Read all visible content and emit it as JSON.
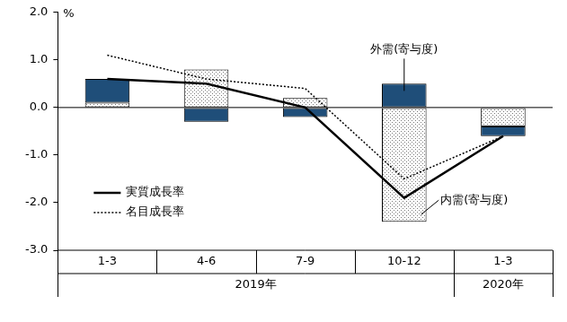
{
  "chart_data": {
    "type": "bar",
    "stacked": true,
    "grid": false,
    "legend": "lower left",
    "y_label": "%",
    "categories": [
      "1-3",
      "4-6",
      "7-9",
      "10-12",
      "1-3"
    ],
    "x_groups": [
      {
        "label": "2019年",
        "count": 4
      },
      {
        "label": "2020年",
        "count": 1
      }
    ],
    "ylim": [
      -3,
      2
    ],
    "yticks": [
      {
        "value": -3,
        "label": "-3.0"
      },
      {
        "value": -2,
        "label": "-2.0"
      },
      {
        "value": -1,
        "label": "-1.0"
      },
      {
        "value": 0,
        "label": "0.0"
      },
      {
        "value": 1,
        "label": "1.0"
      },
      {
        "value": 2,
        "label": "2.0"
      }
    ],
    "series": [
      {
        "name": "内需(寄与度)",
        "type": "bar",
        "color": "#ffffff",
        "values": [
          0.1,
          0.8,
          0.2,
          -2.4,
          -0.4
        ]
      },
      {
        "name": "外需(寄与度)",
        "type": "bar",
        "color": "#1f4e79",
        "values": [
          0.5,
          -0.3,
          -0.2,
          0.5,
          -0.2
        ]
      },
      {
        "name": "実質成長率",
        "type": "line",
        "color": "#000000",
        "line_style": "solid",
        "values": [
          0.6,
          0.5,
          0.0,
          -1.9,
          -0.6
        ]
      },
      {
        "name": "名目成長率",
        "type": "line",
        "color": "#000000",
        "line_style": "dotted",
        "values": [
          1.1,
          0.6,
          0.4,
          -1.5,
          -0.6
        ]
      }
    ]
  }
}
